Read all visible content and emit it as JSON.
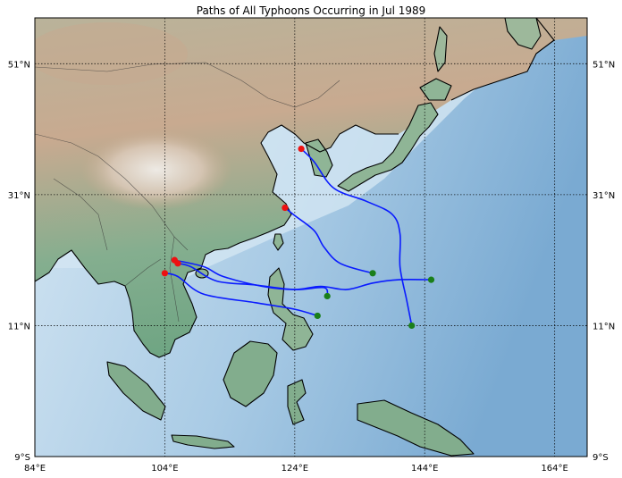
{
  "title": "Paths of All Typhoons Occurring in Jul 1989",
  "colors": {
    "track": "#0a1bff",
    "genesis_point": "#1a7f1a",
    "end_point": "#ee1111",
    "ocean_deep": "#6fa5cf",
    "ocean_shallow": "#cfe3f2",
    "lowland": "#7fb08d",
    "highland": "#c9ad94"
  },
  "chart_data": {
    "type": "map-tracks",
    "title": "Paths of All Typhoons Occurring in Jul 1989",
    "lon_range": [
      84,
      169
    ],
    "lat_range": [
      -9,
      58
    ],
    "x_ticks": [
      "84°E",
      "104°E",
      "124°E",
      "144°E",
      "164°E"
    ],
    "y_ticks": [
      "9°S",
      "11°N",
      "31°N",
      "51°N"
    ],
    "x_tick_values": [
      84,
      104,
      124,
      144,
      164
    ],
    "y_tick_values": [
      -9,
      11,
      31,
      51
    ],
    "grid": true,
    "tracks": [
      {
        "points": [
          [
            142,
            11
          ],
          [
            141.2,
            15
          ],
          [
            140.2,
            20
          ],
          [
            140.2,
            25
          ],
          [
            139,
            28
          ],
          [
            135,
            30
          ],
          [
            130,
            32
          ],
          [
            127,
            36
          ],
          [
            125,
            38
          ]
        ]
      },
      {
        "points": [
          [
            145,
            18
          ],
          [
            140,
            18
          ],
          [
            136,
            17.5
          ],
          [
            132,
            16.5
          ],
          [
            128,
            17
          ],
          [
            124,
            16.5
          ],
          [
            119,
            17
          ],
          [
            113,
            18.5
          ],
          [
            110,
            20
          ],
          [
            105.5,
            21
          ]
        ]
      },
      {
        "points": [
          [
            136,
            19
          ],
          [
            131,
            20.5
          ],
          [
            128.5,
            23
          ],
          [
            127,
            25.5
          ],
          [
            124,
            27.8
          ],
          [
            122.5,
            29
          ]
        ]
      },
      {
        "points": [
          [
            129,
            15.5
          ],
          [
            128.5,
            16.8
          ],
          [
            124,
            16.5
          ],
          [
            118,
            17.2
          ],
          [
            112,
            17.8
          ],
          [
            108,
            20
          ],
          [
            106,
            20.5
          ]
        ]
      },
      {
        "points": [
          [
            127.5,
            12.5
          ],
          [
            124,
            13.5
          ],
          [
            118,
            14.5
          ],
          [
            110,
            15.8
          ],
          [
            106,
            18.5
          ],
          [
            104,
            19
          ]
        ]
      }
    ],
    "genesis_points": [
      [
        142,
        11
      ],
      [
        145,
        18
      ],
      [
        136,
        19
      ],
      [
        129,
        15.5
      ],
      [
        127.5,
        12.5
      ]
    ],
    "end_points": [
      [
        125,
        38
      ],
      [
        105.5,
        21
      ],
      [
        122.5,
        29
      ],
      [
        106,
        20.5
      ],
      [
        104,
        19
      ]
    ]
  }
}
